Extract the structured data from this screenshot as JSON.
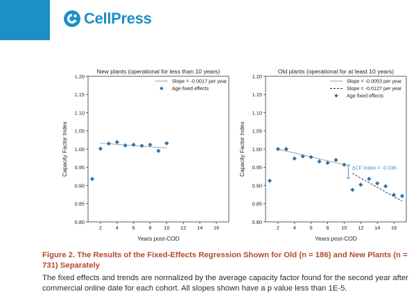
{
  "header": {
    "brand": "CellPress"
  },
  "caption": {
    "title": "Figure 2. The Results of the Fixed-Effects Regression Shown for Old (n = 186) and New Plants (n = 731) Separately",
    "body": "The fixed effects and trends are normalized by the average capacity factor found for the second year after commercial online date for each cohort. All slopes shown have a p value less than 1E-5."
  },
  "x_axis_label": "Years post-COD",
  "colors": {
    "brand": "#1b8fc6",
    "marker": "#2b74ad",
    "caption_title": "#b24a2a",
    "annotation": "#3a8fd1"
  },
  "chart_data": [
    {
      "type": "scatter",
      "title": "New plants (operational for less than 10 years)",
      "xlabel": "",
      "ylabel": "Capacity Factor Index",
      "xlim": [
        0.5,
        17.5
      ],
      "ylim": [
        0.8,
        1.2
      ],
      "xticks": [
        "2",
        "4",
        "6",
        "8",
        "10",
        "12",
        "14",
        "16"
      ],
      "yticks": [
        "0.80",
        "0.85",
        "0.90",
        "0.95",
        "1.00",
        "1.05",
        "1.10",
        "1.15",
        "1.20"
      ],
      "grid": false,
      "legend_position": "top-right",
      "legend": [
        {
          "label": "Slope = -0.0017 per year",
          "kind": "solid-line"
        },
        {
          "label": "Age fixed effects",
          "kind": "diamond"
        }
      ],
      "points": {
        "x": [
          1,
          2,
          3,
          4,
          5,
          6,
          7,
          8,
          9,
          10
        ],
        "y": [
          0.918,
          1.001,
          1.015,
          1.019,
          1.01,
          1.012,
          1.009,
          1.012,
          0.995,
          1.016
        ]
      },
      "trend_lines": [
        {
          "style": "solid",
          "x": [
            2,
            10
          ],
          "y": [
            1.016,
            1.003
          ]
        }
      ],
      "annotations": []
    },
    {
      "type": "scatter",
      "title": "Old plants (operational for at least 10 years)",
      "xlabel": "",
      "ylabel": "Capacity Factor Index",
      "xlim": [
        0.5,
        17.5
      ],
      "ylim": [
        0.8,
        1.2
      ],
      "xticks": [
        "2",
        "4",
        "6",
        "8",
        "10",
        "12",
        "14",
        "16"
      ],
      "yticks": [
        "0.80",
        "0.85",
        "0.90",
        "0.95",
        "1.00",
        "1.05",
        "1.10",
        "1.15",
        "1.20"
      ],
      "grid": false,
      "legend_position": "top-right",
      "legend": [
        {
          "label": "Slope = -0.0053 per year",
          "kind": "solid-line"
        },
        {
          "label": "Slope = -0.0127 per year",
          "kind": "dashed-line"
        },
        {
          "label": "Age fixed effects",
          "kind": "diamond"
        }
      ],
      "points": {
        "x": [
          1,
          2,
          3,
          4,
          5,
          6,
          7,
          8,
          9,
          10,
          11,
          12,
          13,
          14,
          15,
          16,
          17
        ],
        "y": [
          0.913,
          1.0,
          1.0,
          0.974,
          0.98,
          0.978,
          0.966,
          0.962,
          0.97,
          0.957,
          0.888,
          0.902,
          0.918,
          0.906,
          0.898,
          0.874,
          0.871
        ]
      },
      "trend_lines": [
        {
          "style": "solid",
          "x": [
            2,
            10
          ],
          "y": [
            1.0,
            0.957
          ]
        },
        {
          "style": "dashed",
          "x": [
            11,
            17
          ],
          "y": [
            0.933,
            0.857
          ]
        }
      ],
      "annotations": [
        {
          "label": "ΔCF Index = -0.036",
          "bracket_x": 10.5,
          "y_top": 0.956,
          "y_bottom": 0.92
        }
      ]
    }
  ]
}
